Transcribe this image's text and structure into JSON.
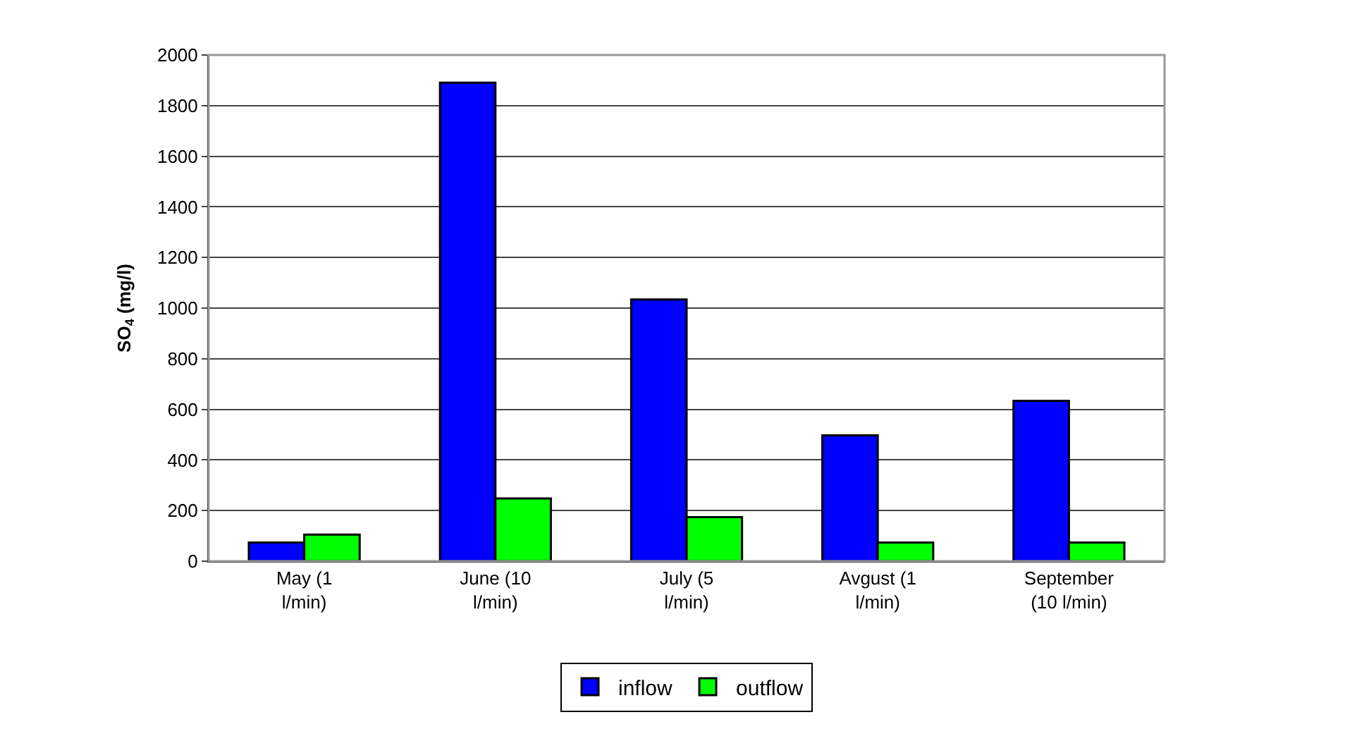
{
  "chart_data": {
    "type": "bar",
    "ylabel": "SO$_{4}$ (mg/l)",
    "categories": [
      "May (1 l/min)",
      "June (10 l/min)",
      "July (5 l/min)",
      "Avgust (1 l/min)",
      "September (10 l/min)"
    ],
    "series": [
      {
        "name": "inflow",
        "color": "#0000ff",
        "values": [
          74,
          1891,
          1034,
          497,
          634
        ]
      },
      {
        "name": "outflow",
        "color": "#00ff00",
        "values": [
          105,
          248,
          174,
          74,
          74
        ]
      }
    ],
    "ylim": [
      0,
      2000
    ],
    "yticks": [
      0,
      200,
      400,
      600,
      800,
      1000,
      1200,
      1400,
      1600,
      1800,
      2000
    ],
    "grid": "y",
    "legend": "bottom"
  }
}
